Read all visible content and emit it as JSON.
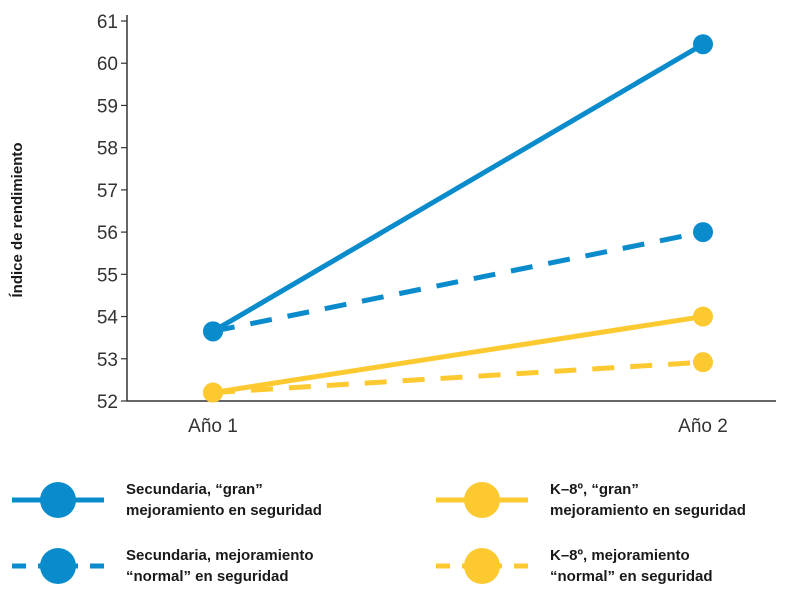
{
  "chart_data": {
    "type": "line",
    "categories": [
      "Año 1",
      "Año 2"
    ],
    "ylabel": "Índice de rendimiento",
    "xlabel": "",
    "ylim": [
      52,
      61
    ],
    "yticks": [
      "52",
      "53",
      "54",
      "55",
      "56",
      "57",
      "58",
      "59",
      "60",
      "61"
    ],
    "grid": false,
    "legend_position": "bottom",
    "series": [
      {
        "name": "Secundaria, “gran” mejoramiento en seguridad",
        "values": [
          53.65,
          60.45
        ],
        "color": "#0a8ccc",
        "style": "solid"
      },
      {
        "name": "Secundaria, mejoramiento “normal” en seguridad",
        "values": [
          53.65,
          56.0
        ],
        "color": "#0a8ccc",
        "style": "dashed"
      },
      {
        "name": "K–8º, “gran” mejoramiento en seguridad",
        "values": [
          52.2,
          54.0
        ],
        "color": "#fcc931",
        "style": "solid"
      },
      {
        "name": "K–8º, mejoramiento “normal” en seguridad",
        "values": [
          52.2,
          52.92
        ],
        "color": "#fcc931",
        "style": "dashed"
      }
    ]
  },
  "legend": {
    "items": [
      {
        "label": "Secundaria, “gran”\nmejoramiento en seguridad"
      },
      {
        "label": "Secundaria, mejoramiento\n“normal” en seguridad"
      },
      {
        "label": "K–8º, “gran”\nmejoramiento en seguridad"
      },
      {
        "label": "K–8º, mejoramiento\n“normal” en seguridad"
      }
    ]
  }
}
